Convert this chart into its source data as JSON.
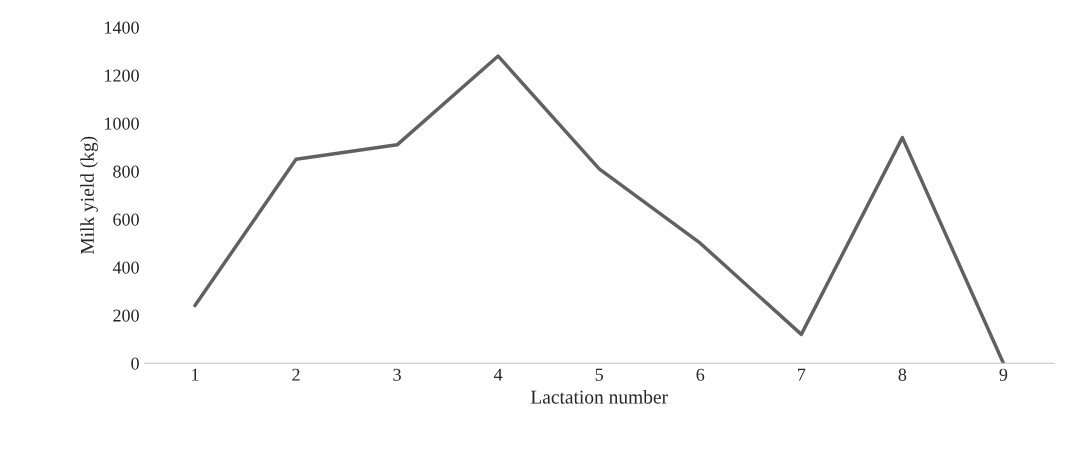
{
  "chart_data": {
    "type": "line",
    "xlabel": "Lactation number",
    "ylabel": "Milk yield (kg)",
    "categories": [
      "1",
      "2",
      "3",
      "4",
      "5",
      "6",
      "7",
      "8",
      "9"
    ],
    "series": [
      {
        "color": "#616161",
        "values": [
          240,
          850,
          910,
          1280,
          810,
          500,
          120,
          940,
          0
        ]
      }
    ],
    "ylim": [
      0,
      1400
    ],
    "yticks": [
      0,
      200,
      400,
      600,
      800,
      1000,
      1200,
      1400
    ],
    "grid": false,
    "legend": false
  }
}
